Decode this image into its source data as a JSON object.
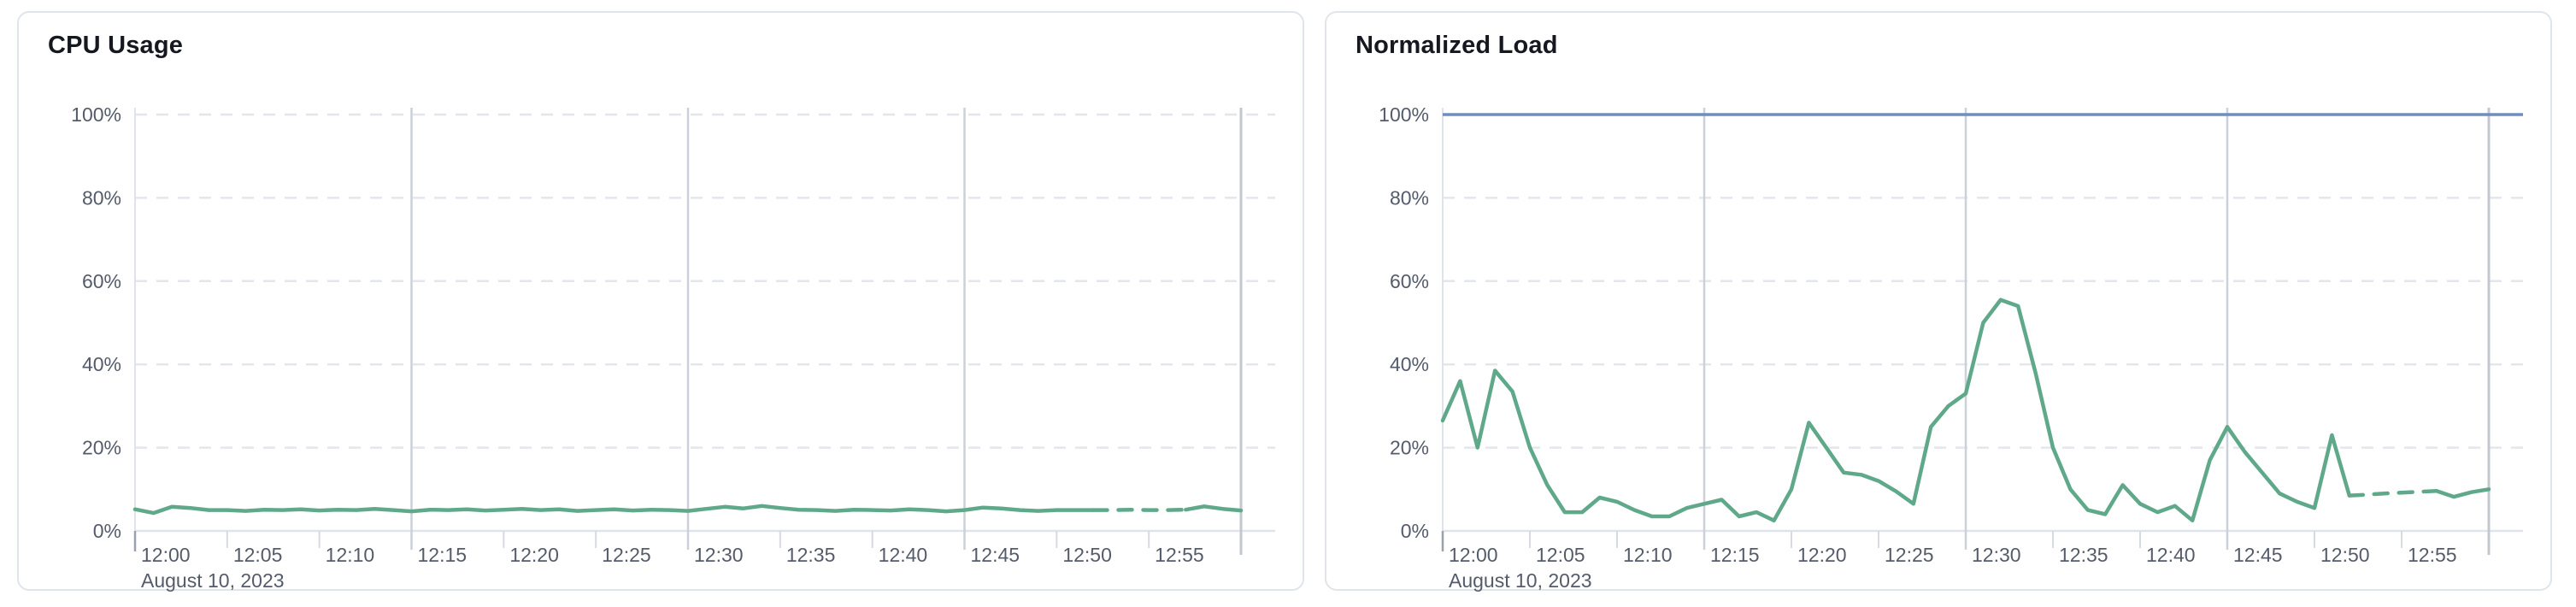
{
  "style": {
    "page_bg": "#ffffff",
    "card_bg": "#ffffff",
    "card_border": "#e0e4eb",
    "title_color": "#15181f",
    "label_color": "#545b6b",
    "grid_dashed_color": "#e3e6ed",
    "grid_major_color": "#ccd0d8",
    "axis_color": "#e0e3ea",
    "minor_tick_color": "#d7dae1",
    "axis_end_tick_color": "#9aa1ad",
    "end_line_color": "#c3c7cf"
  },
  "chart_data": [
    {
      "type": "line",
      "title": "CPU Usage",
      "series_name": "CPU Usage",
      "color": "#5fa98a",
      "x_start": "12:00",
      "x_step_minutes": 1,
      "x_tick_labels": [
        "12:00",
        "12:05",
        "12:10",
        "12:15",
        "12:20",
        "12:25",
        "12:30",
        "12:35",
        "12:40",
        "12:45",
        "12:50",
        "12:55"
      ],
      "date_label": "August 10, 2023",
      "y_tick_labels": [
        "0%",
        "20%",
        "40%",
        "60%",
        "80%",
        "100%"
      ],
      "ylim": [
        0,
        100
      ],
      "y_unit": "%",
      "grid": {
        "horizontal": "dashed",
        "vertical_major_at": [
          "12:15",
          "12:30",
          "12:45",
          "end-of-data"
        ]
      },
      "dashed_segment": {
        "from_index": 52,
        "to_index": 57
      },
      "threshold_line": null,
      "values": [
        5.2,
        4.3,
        5.8,
        5.5,
        5.0,
        5.0,
        4.8,
        5.1,
        5.0,
        5.2,
        4.9,
        5.1,
        5.0,
        5.3,
        5.0,
        4.7,
        5.1,
        5.0,
        5.2,
        4.9,
        5.1,
        5.3,
        5.0,
        5.2,
        4.8,
        5.0,
        5.2,
        4.9,
        5.1,
        5.0,
        4.8,
        5.3,
        5.8,
        5.4,
        6.0,
        5.5,
        5.1,
        5.0,
        4.8,
        5.1,
        5.0,
        4.9,
        5.2,
        5.0,
        4.7,
        5.0,
        5.6,
        5.4,
        5.0,
        4.8,
        5.0,
        5.0,
        5.0,
        5.0,
        5.1,
        5.0,
        5.0,
        5.1,
        5.9,
        5.3,
        4.9
      ]
    },
    {
      "type": "line",
      "title": "Normalized Load",
      "series_name": "Normalized Load",
      "color": "#5fa98a",
      "x_start": "12:00",
      "x_step_minutes": 1,
      "x_tick_labels": [
        "12:00",
        "12:05",
        "12:10",
        "12:15",
        "12:20",
        "12:25",
        "12:30",
        "12:35",
        "12:40",
        "12:45",
        "12:50",
        "12:55"
      ],
      "date_label": "August 10, 2023",
      "y_tick_labels": [
        "0%",
        "20%",
        "40%",
        "60%",
        "80%",
        "100%"
      ],
      "ylim": [
        0,
        100
      ],
      "y_unit": "%",
      "grid": {
        "horizontal": "dashed",
        "vertical_major_at": [
          "12:15",
          "12:30",
          "12:45",
          "end-of-data"
        ]
      },
      "dashed_segment": {
        "from_index": 52,
        "to_index": 57
      },
      "threshold_line": {
        "value": 100,
        "color": "#6d8ebf"
      },
      "values": [
        26.5,
        36,
        20,
        38.5,
        33.5,
        20,
        11,
        4.5,
        4.5,
        8,
        7,
        5,
        3.5,
        3.5,
        5.5,
        6.5,
        7.5,
        3.5,
        4.5,
        2.5,
        10,
        26,
        20,
        14,
        13.5,
        12,
        9.5,
        6.5,
        25,
        30,
        33,
        50,
        55.5,
        54,
        38,
        20,
        10,
        5,
        4,
        11,
        6.5,
        4.5,
        6,
        2.5,
        17,
        25,
        19,
        14,
        9,
        7,
        5.5,
        23,
        8.5,
        8.7,
        9,
        9.2,
        9.4,
        9.6,
        8.2,
        9.3,
        10
      ]
    }
  ]
}
